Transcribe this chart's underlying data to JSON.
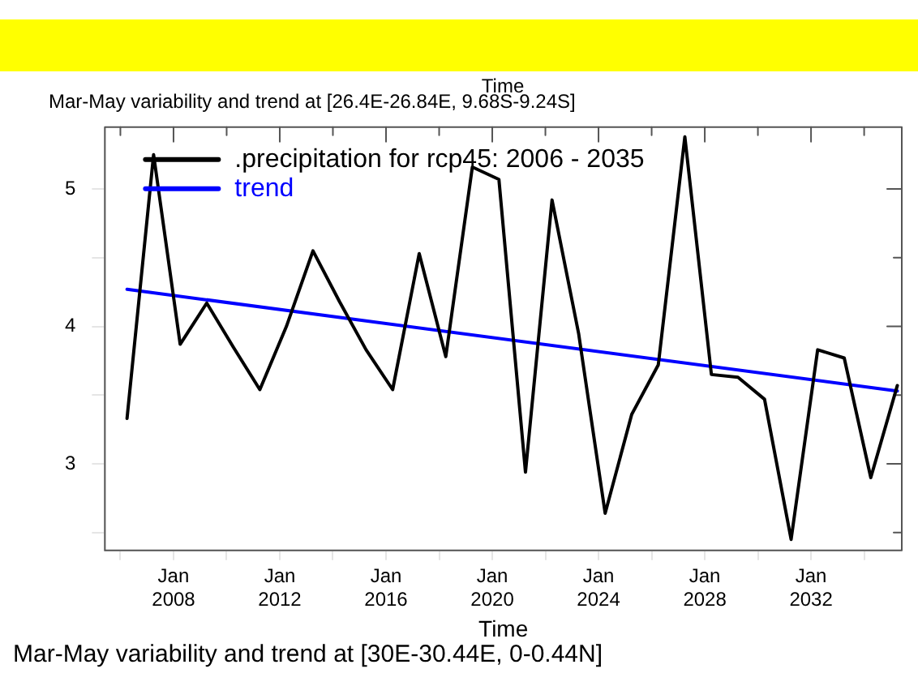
{
  "chart_data": {
    "type": "line",
    "title": "Mar-May variability and trend at [26.4E-26.84E, 9.68S-9.24S]",
    "xlabel": "Time",
    "annotations": [
      "Time",
      "Mar-May variability and trend at [30E-30.44E, 0-0.44N]"
    ],
    "x": [
      "2006-04",
      "2007-04",
      "2008-04",
      "2009-04",
      "2010-04",
      "2011-04",
      "2012-04",
      "2013-04",
      "2014-04",
      "2015-04",
      "2016-04",
      "2017-04",
      "2018-04",
      "2019-04",
      "2020-04",
      "2021-04",
      "2022-04",
      "2023-04",
      "2024-04",
      "2025-04",
      "2026-04",
      "2027-04",
      "2028-04",
      "2029-04",
      "2030-04",
      "2031-04",
      "2032-04",
      "2033-04",
      "2034-04",
      "2035-04"
    ],
    "series": [
      {
        "name": ".precipitation for rcp45: 2006 - 2035",
        "color": "#000000",
        "values": [
          3.33,
          5.25,
          3.87,
          4.17,
          3.85,
          3.54,
          4.0,
          4.55,
          4.18,
          3.83,
          3.54,
          4.53,
          3.78,
          5.16,
          5.07,
          2.94,
          4.92,
          3.95,
          2.64,
          3.36,
          3.72,
          5.38,
          3.65,
          3.63,
          3.47,
          2.45,
          3.83,
          3.77,
          2.9,
          3.57
        ]
      },
      {
        "name": "trend",
        "color": "#0000ff",
        "x": [
          "2006-04",
          "2035-04"
        ],
        "values": [
          4.27,
          3.53
        ]
      }
    ],
    "xlim": [
      "2005-06",
      "2035-06"
    ],
    "xticks": [
      {
        "value": "2006-01",
        "label": null
      },
      {
        "value": "2008-01",
        "label": "Jan\n2008"
      },
      {
        "value": "2010-01",
        "label": null
      },
      {
        "value": "2012-01",
        "label": "Jan\n2012"
      },
      {
        "value": "2014-01",
        "label": null
      },
      {
        "value": "2016-01",
        "label": "Jan\n2016"
      },
      {
        "value": "2018-01",
        "label": null
      },
      {
        "value": "2020-01",
        "label": "Jan\n2020"
      },
      {
        "value": "2022-01",
        "label": null
      },
      {
        "value": "2024-01",
        "label": "Jan\n2024"
      },
      {
        "value": "2026-01",
        "label": null
      },
      {
        "value": "2028-01",
        "label": "Jan\n2028"
      },
      {
        "value": "2030-01",
        "label": null
      },
      {
        "value": "2032-01",
        "label": "Jan\n2032"
      },
      {
        "value": "2034-01",
        "label": null
      }
    ],
    "ylim": [
      2.37,
      5.45
    ],
    "yticks": [
      {
        "value": 2.5,
        "label": null
      },
      3,
      {
        "value": 3.5,
        "label": null
      },
      4,
      {
        "value": 4.5,
        "label": null
      },
      5
    ],
    "grid": false,
    "legend": "top left",
    "marker": "none",
    "line_style": "solid"
  }
}
